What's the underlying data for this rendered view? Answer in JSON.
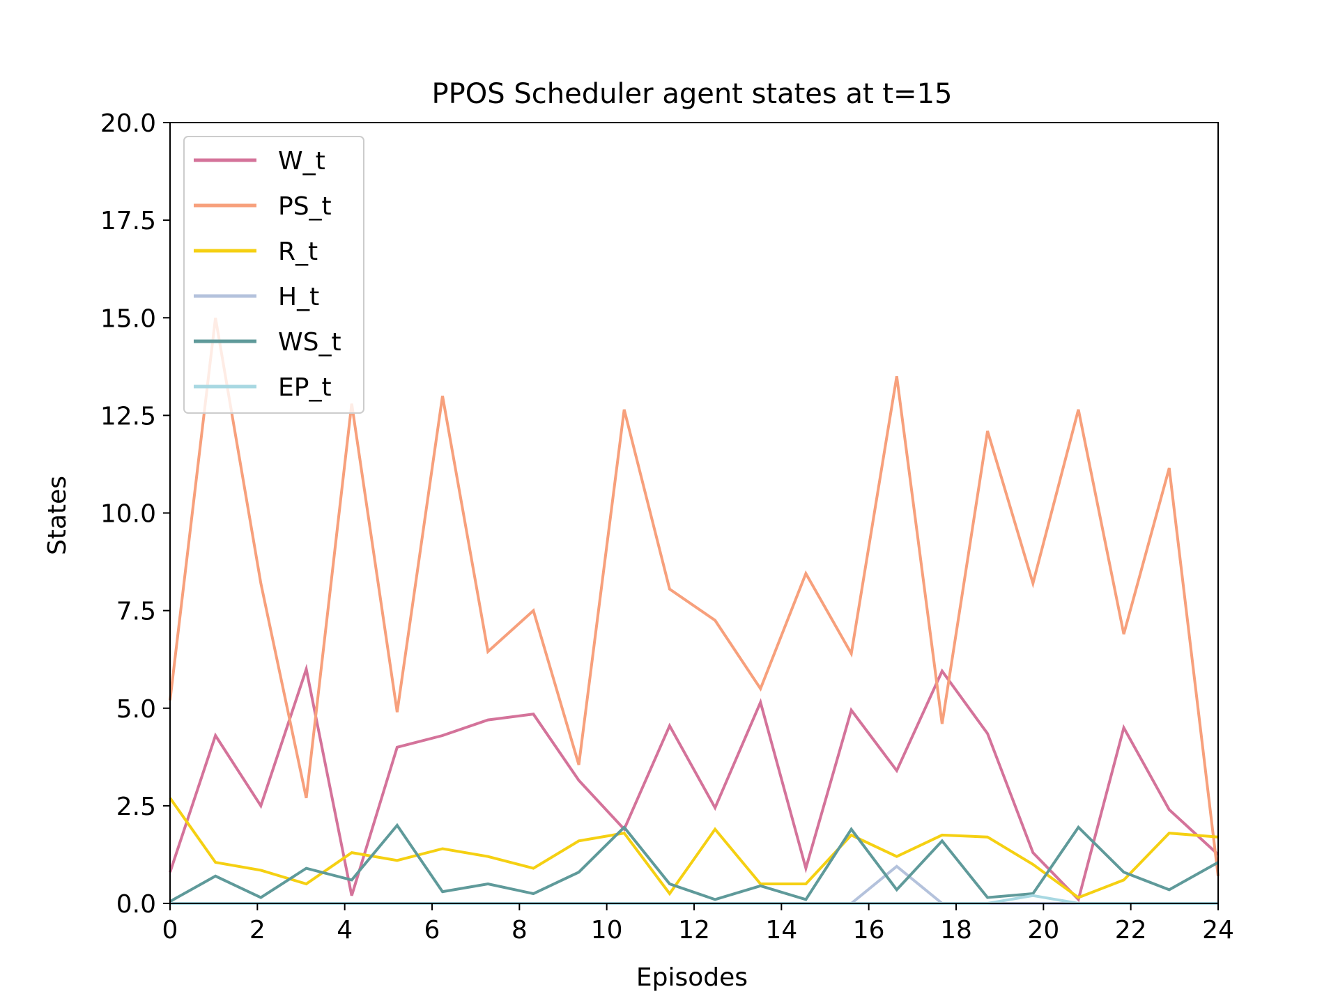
{
  "chart_data": {
    "type": "line",
    "title": "PPOS Scheduler agent states at t=15",
    "xlabel": "Episodes",
    "ylabel": "States",
    "xlim": [
      0,
      24
    ],
    "ylim": [
      0,
      20
    ],
    "xticks": [
      "0",
      "2",
      "4",
      "6",
      "8",
      "10",
      "12",
      "14",
      "16",
      "18",
      "20",
      "22",
      "24"
    ],
    "yticks": [
      "0.0",
      "2.5",
      "5.0",
      "7.5",
      "10.0",
      "12.5",
      "15.0",
      "17.5",
      "20.0"
    ],
    "grid": false,
    "legend_position": "top-left",
    "x": [
      0,
      1.04,
      2.08,
      3.12,
      4.16,
      5.2,
      6.24,
      7.28,
      8.32,
      9.36,
      10.4,
      11.44,
      12.48,
      13.52,
      14.56,
      15.6,
      16.64,
      17.68,
      18.72,
      19.76,
      20.8,
      21.84,
      22.88,
      24.0
    ],
    "series": [
      {
        "name": "W_t",
        "color": "#d4739a",
        "values": [
          0.8,
          4.3,
          2.5,
          6.0,
          0.2,
          4.0,
          4.3,
          4.7,
          4.85,
          3.15,
          1.9,
          4.55,
          2.45,
          5.15,
          0.9,
          4.95,
          3.4,
          5.95,
          4.35,
          1.3,
          0.1,
          4.5,
          2.4,
          1.25
        ]
      },
      {
        "name": "PS_t",
        "color": "#f7a07c",
        "values": [
          5.2,
          15.0,
          8.2,
          2.7,
          12.8,
          4.9,
          13.0,
          6.45,
          7.5,
          3.55,
          12.65,
          8.05,
          7.25,
          5.5,
          8.45,
          6.4,
          13.5,
          4.6,
          12.1,
          8.2,
          12.65,
          6.9,
          11.15,
          0.7
        ]
      },
      {
        "name": "R_t",
        "color": "#f5d012",
        "values": [
          2.7,
          1.05,
          0.85,
          0.5,
          1.3,
          1.1,
          1.4,
          1.2,
          0.9,
          1.6,
          1.8,
          0.25,
          1.9,
          0.5,
          0.5,
          1.75,
          1.2,
          1.75,
          1.7,
          1.0,
          0.15,
          0.6,
          1.8,
          1.7
        ]
      },
      {
        "name": "H_t",
        "color": "#b4c2dc",
        "values": [
          0,
          0,
          0,
          0,
          0,
          0,
          0,
          0,
          0,
          0,
          0,
          0,
          0,
          0,
          0,
          0,
          0.95,
          0,
          0,
          0,
          0,
          0,
          0,
          0
        ]
      },
      {
        "name": "WS_t",
        "color": "#5f9a9a",
        "values": [
          0.05,
          0.7,
          0.15,
          0.9,
          0.6,
          2.0,
          0.3,
          0.5,
          0.25,
          0.8,
          1.95,
          0.5,
          0.1,
          0.45,
          0.1,
          1.9,
          0.35,
          1.6,
          0.15,
          0.25,
          1.95,
          0.8,
          0.35,
          1.05
        ]
      },
      {
        "name": "EP_t",
        "color": "#a8d8e2",
        "values": [
          0,
          0,
          0,
          0,
          0,
          0,
          0,
          0,
          0,
          0,
          0,
          0,
          0,
          0,
          0,
          0,
          0,
          0,
          0,
          0.2,
          0,
          0,
          0,
          0
        ]
      }
    ]
  }
}
